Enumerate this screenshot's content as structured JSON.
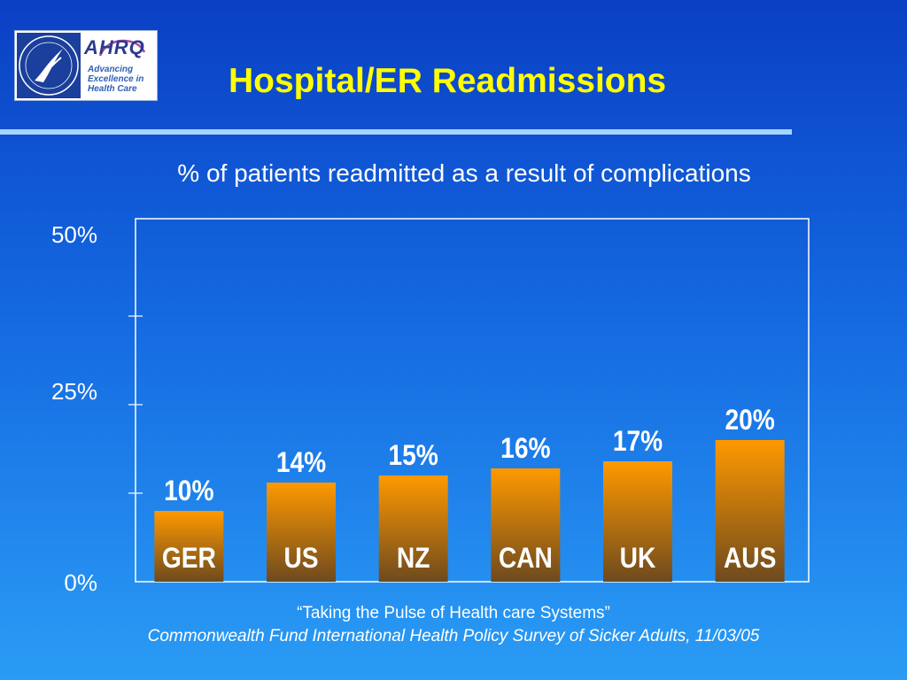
{
  "header": {
    "title": "Hospital/ER Readmissions",
    "logo_tagline": "Advancing Excellence in Health Care"
  },
  "colors": {
    "title": "#ffff00",
    "bar_top": "#ff9900",
    "bar_bottom": "#6e4a1e",
    "text": "#ffffff"
  },
  "chart_data": {
    "type": "bar",
    "title": "% of patients readmitted as a result of complications",
    "categories": [
      "GER",
      "US",
      "NZ",
      "CAN",
      "UK",
      "AUS"
    ],
    "values": [
      10,
      14,
      15,
      16,
      17,
      20
    ],
    "value_labels": [
      "10%",
      "14%",
      "15%",
      "16%",
      "17%",
      "20%"
    ],
    "ylim": [
      0,
      50
    ],
    "yticks": [
      {
        "value": 0,
        "label": "0%"
      },
      {
        "value": 25,
        "label": "25%"
      },
      {
        "value": 50,
        "label": "50%"
      }
    ],
    "xlabel": "",
    "ylabel": "",
    "grid": false
  },
  "footer": {
    "source_title": "“Taking the Pulse of Health care Systems”",
    "source_detail": "Commonwealth Fund International Health Policy Survey of Sicker Adults, 11/03/05"
  }
}
